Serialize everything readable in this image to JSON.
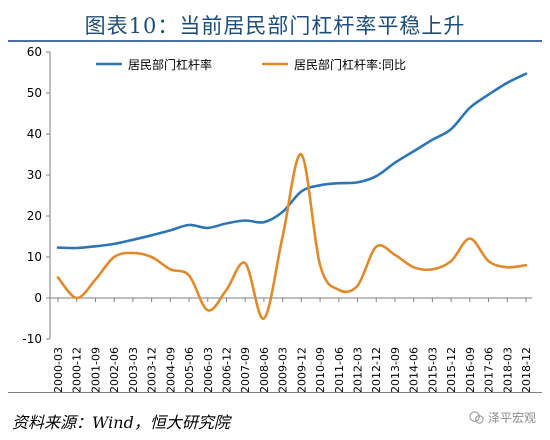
{
  "header": {
    "title": "图表10：当前居民部门杠杆率平稳上升"
  },
  "footer": {
    "source": "资料来源：Wind，恒大研究院",
    "watermark": "泽平宏观"
  },
  "chart_data": {
    "type": "line",
    "grid": false,
    "legend_position": "top",
    "ylim": [
      -10,
      60
    ],
    "y_ticks": [
      -10,
      0,
      10,
      20,
      30,
      40,
      50,
      60
    ],
    "categories": [
      "2000-03",
      "2000-12",
      "2001-09",
      "2002-06",
      "2003-03",
      "2003-12",
      "2004-09",
      "2005-06",
      "2006-03",
      "2006-12",
      "2007-09",
      "2008-06",
      "2009-03",
      "2009-12",
      "2010-09",
      "2011-06",
      "2012-03",
      "2012-12",
      "2013-09",
      "2014-06",
      "2015-03",
      "2015-12",
      "2016-09",
      "2017-06",
      "2018-03",
      "2018-12"
    ],
    "series": [
      {
        "name": "居民部门杠杆率",
        "color": "#2e75b6",
        "values": [
          12.3,
          12.2,
          12.6,
          13.2,
          14.2,
          15.3,
          16.5,
          17.8,
          17.1,
          18.2,
          18.9,
          18.5,
          21.0,
          26.0,
          27.5,
          28.0,
          28.2,
          29.7,
          33.0,
          35.8,
          38.6,
          41.2,
          46.4,
          49.6,
          52.5,
          54.7
        ]
      },
      {
        "name": "居民部门杠杆率:同比",
        "color": "#e08a2c",
        "values": [
          5.0,
          0.0,
          4.5,
          10.0,
          11.0,
          10.0,
          7.0,
          5.5,
          -3.0,
          2.0,
          8.5,
          -5.0,
          15.0,
          35.0,
          8.0,
          2.0,
          3.0,
          12.5,
          10.5,
          7.5,
          7.0,
          9.0,
          14.5,
          9.0,
          7.5,
          8.0
        ]
      }
    ]
  }
}
